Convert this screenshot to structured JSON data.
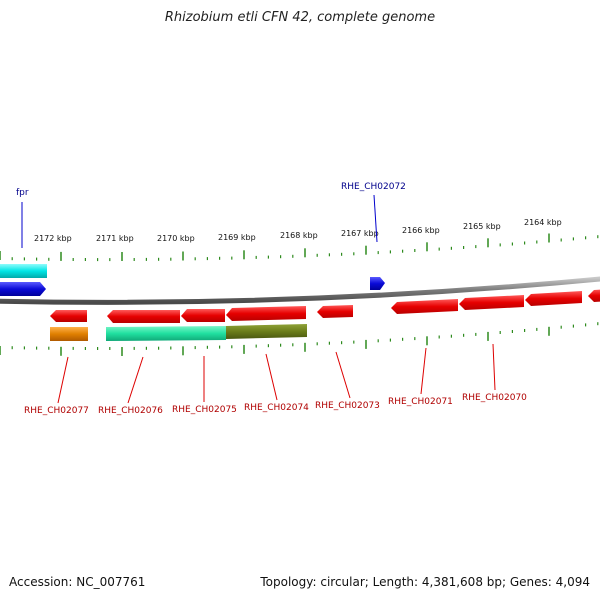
{
  "title": "Rhizobium etli CFN 42, complete genome",
  "footer": {
    "accession": "Accession: NC_007761",
    "summary": "Topology: circular; Length: 4,381,608 bp; Genes: 4,094"
  },
  "scale": {
    "ticks": [
      {
        "label": "2172 kbp"
      },
      {
        "label": "2171 kbp"
      },
      {
        "label": "2170 kbp"
      },
      {
        "label": "2169 kbp"
      },
      {
        "label": "2168 kbp"
      },
      {
        "label": "2167 kbp"
      },
      {
        "label": "2166 kbp"
      },
      {
        "label": "2165 kbp"
      },
      {
        "label": "2164 kbp"
      }
    ]
  },
  "gene_labels": {
    "forward": [
      {
        "label": "fpr",
        "color": "#00008b"
      },
      {
        "label": "RHE_CH02072",
        "color": "#00008b"
      }
    ],
    "reverse": [
      {
        "label": "RHE_CH02077",
        "color": "#b00000"
      },
      {
        "label": "RHE_CH02076",
        "color": "#b00000"
      },
      {
        "label": "RHE_CH02075",
        "color": "#b00000"
      },
      {
        "label": "RHE_CH02074",
        "color": "#b00000"
      },
      {
        "label": "RHE_CH02073",
        "color": "#b00000"
      },
      {
        "label": "RHE_CH02071",
        "color": "#b00000"
      },
      {
        "label": "RHE_CH02070",
        "color": "#b00000"
      }
    ]
  },
  "colors": {
    "backbone": "#808080",
    "tick": "#2e8b1e",
    "forward_cds": "#0a0ad8",
    "reverse_cds": "#e60000",
    "cyan_feature": "#00e5e5",
    "orange_feature": "#e08000",
    "teal_feature": "#20e0a0",
    "olive_feature": "#6b7d1a"
  }
}
